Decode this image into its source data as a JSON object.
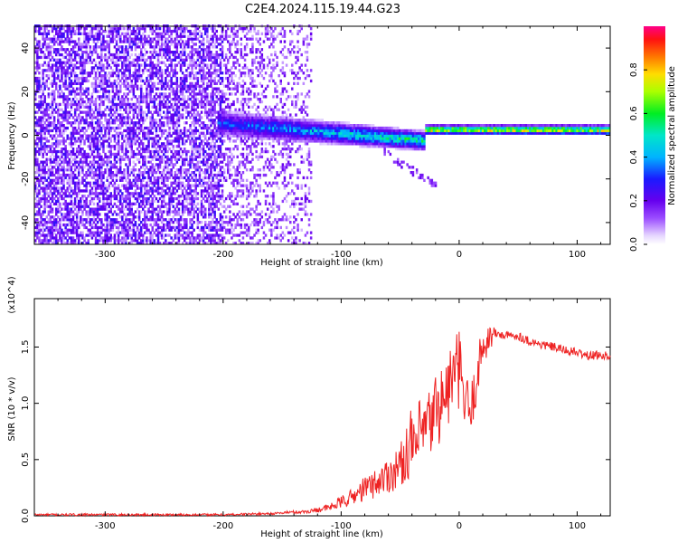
{
  "title": "C2E4.2024.115.19.44.G23",
  "chart_data": [
    {
      "type": "heatmap",
      "name": "spectrogram",
      "xlabel": "Height of straight line (km)",
      "ylabel": "Frequency (Hz)",
      "xlim": [
        -360,
        128
      ],
      "ylim": [
        -50,
        50
      ],
      "x_ticks": [
        -300,
        -200,
        -100,
        0,
        100
      ],
      "x_tick_labels": [
        "-300",
        "-200",
        "-100",
        "0",
        "100"
      ],
      "y_ticks": [
        -40,
        -20,
        0,
        20,
        40
      ],
      "y_tick_labels": [
        "-40",
        "-20",
        "0",
        "20",
        "40"
      ],
      "colorbar": {
        "label": "Normalized spectral amplitude",
        "range": [
          0,
          1
        ],
        "ticks": [
          0.0,
          0.2,
          0.4,
          0.6,
          0.8
        ],
        "tick_labels": [
          "0.0",
          "0.2",
          "0.4",
          "0.6",
          "0.8"
        ],
        "colormap": "rainbow (white - violet - blue - cyan - green - yellow - red - magenta)"
      },
      "regions": [
        {
          "x_range": [
            -360,
            -200
          ],
          "description": "broadband noise, amplitude 0.05-0.25, all frequencies"
        },
        {
          "x_range": [
            -200,
            -125
          ],
          "description": "sparse noise plus band near 0 Hz"
        },
        {
          "x_range": [
            -200,
            -30
          ],
          "center_freq_hz": [
            5,
            -5
          ],
          "description": "signal band, amplitude 0.2-0.9"
        },
        {
          "x_range": [
            -30,
            128
          ],
          "center_freq_hz": 2,
          "description": "narrow strong tone, amplitude 0.6-0.95"
        }
      ]
    },
    {
      "type": "line",
      "name": "snr",
      "xlabel": "Height of straight line (km)",
      "ylabel": "SNR (10 * v/v)",
      "y_multiplier": "(x10^4)",
      "xlim": [
        -360,
        128
      ],
      "ylim": [
        0,
        1.93
      ],
      "x_ticks": [
        -300,
        -200,
        -100,
        0,
        100
      ],
      "x_tick_labels": [
        "-300",
        "-200",
        "-100",
        "0",
        "100"
      ],
      "y_ticks": [
        0.0,
        0.5,
        1.0,
        1.5
      ],
      "y_tick_labels": [
        "0.0",
        "0.5",
        "1.0",
        "1.5"
      ],
      "color": "#ee2222",
      "series": [
        {
          "name": "SNR",
          "x": [
            -360,
            -320,
            -280,
            -240,
            -200,
            -160,
            -130,
            -110,
            -100,
            -90,
            -80,
            -70,
            -60,
            -50,
            -40,
            -30,
            -25,
            -20,
            -15,
            -10,
            -5,
            0,
            5,
            10,
            15,
            20,
            25,
            30,
            40,
            50,
            60,
            70,
            80,
            90,
            100,
            110,
            120,
            128
          ],
          "y": [
            0.01,
            0.01,
            0.01,
            0.01,
            0.01,
            0.02,
            0.03,
            0.06,
            0.1,
            0.14,
            0.2,
            0.24,
            0.3,
            0.36,
            0.55,
            0.75,
            0.8,
            0.95,
            1.0,
            1.1,
            1.25,
            1.3,
            1.0,
            0.9,
            1.25,
            1.5,
            1.58,
            1.62,
            1.6,
            1.6,
            1.55,
            1.52,
            1.5,
            1.47,
            1.45,
            1.42,
            1.43,
            1.42
          ]
        }
      ]
    }
  ],
  "colors": {
    "line": "#ee2222",
    "axis": "#000000"
  }
}
